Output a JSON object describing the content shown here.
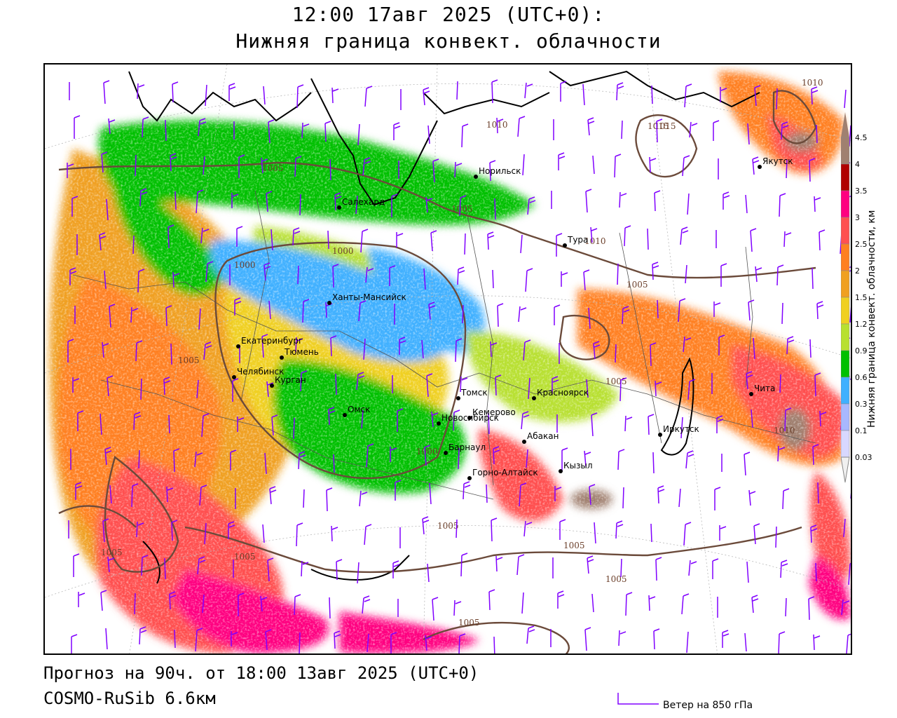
{
  "header": {
    "title_line1": "12:00 17авг 2025 (UTC+0):",
    "title_line2": "Нижняя граница конвект. облачности"
  },
  "footer": {
    "forecast": "Прогноз на 90ч. от 18:00 13авг 2025 (UTC+0)",
    "model": "COSMO-RuSib 6.6км",
    "wind_legend": "Ветер на 850 гПа"
  },
  "legend": {
    "title": "Нижняя граница конвект. облачности, км",
    "ticks": [
      "4.5",
      "4",
      "3.5",
      "3",
      "2.5",
      "2",
      "1.5",
      "1.2",
      "0.9",
      "0.6",
      "0.3",
      "0.1",
      "0.03"
    ],
    "colors": [
      "#a08070",
      "#b00000",
      "#ff0080",
      "#ff5050",
      "#ff8020",
      "#f0a020",
      "#f0d020",
      "#b8e030",
      "#00c000",
      "#40b0ff",
      "#a8b8ff",
      "#d8d8ff"
    ]
  },
  "cities": [
    {
      "name": "Норильск"
    },
    {
      "name": "Салехард"
    },
    {
      "name": "Тура"
    },
    {
      "name": "Якутск"
    },
    {
      "name": "Ханты-Мансийск"
    },
    {
      "name": "Екатеринбург"
    },
    {
      "name": "Тюмень"
    },
    {
      "name": "Челябинск"
    },
    {
      "name": "Курган"
    },
    {
      "name": "Омск"
    },
    {
      "name": "Новосибирск"
    },
    {
      "name": "Томск"
    },
    {
      "name": "Кемерово"
    },
    {
      "name": "Красноярск"
    },
    {
      "name": "Абакан"
    },
    {
      "name": "Кызыл"
    },
    {
      "name": "Горно-Алтайск"
    },
    {
      "name": "Барнаул"
    },
    {
      "name": "Иркутск"
    },
    {
      "name": "Чита"
    }
  ],
  "isobar_labels": [
    "1005",
    "1010",
    "1015",
    "1005",
    "1000",
    "1000",
    "1010",
    "1005",
    "1005",
    "1005",
    "1005",
    "1005",
    "1000",
    "1005",
    "1005",
    "1010",
    "1015",
    "1010",
    "1005",
    "1005"
  ],
  "colors": {
    "isobar": "#6b4a3a",
    "coast": "#000000",
    "wind_barb": "#8000ff",
    "border": "#555555"
  }
}
